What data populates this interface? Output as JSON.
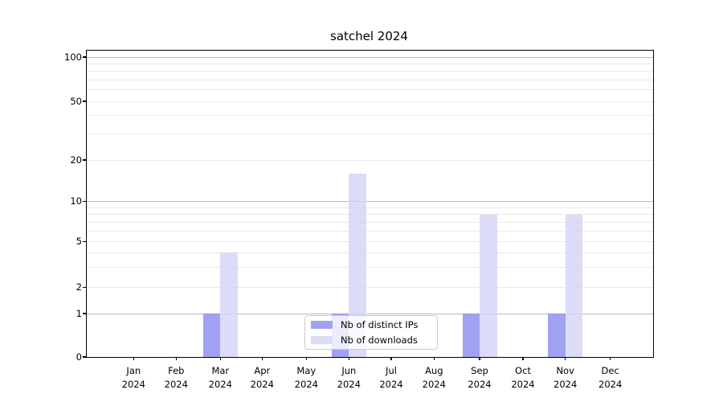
{
  "chart_data": {
    "type": "bar",
    "title": "satchel 2024",
    "categories": [
      "Jan 2024",
      "Feb 2024",
      "Mar 2024",
      "Apr 2024",
      "May 2024",
      "Jun 2024",
      "Jul 2024",
      "Aug 2024",
      "Sep 2024",
      "Oct 2024",
      "Nov 2024",
      "Dec 2024"
    ],
    "series": [
      {
        "name": "Nb of distinct IPs",
        "color": "#8c8cee",
        "values": [
          0,
          0,
          1,
          0,
          0,
          1,
          0,
          0,
          1,
          0,
          1,
          0
        ]
      },
      {
        "name": "Nb of downloads",
        "color": "#d4d4f7",
        "values": [
          0,
          0,
          4,
          0,
          0,
          16,
          0,
          0,
          8,
          0,
          8,
          0
        ]
      }
    ],
    "xlabel": "",
    "ylabel": "",
    "yscale": "symlog",
    "yticks": [
      0,
      1,
      2,
      5,
      10,
      20,
      50,
      100
    ],
    "ylim": [
      0,
      110
    ],
    "minor_ticks": [
      2,
      3,
      4,
      5,
      6,
      7,
      8,
      9,
      20,
      30,
      40,
      50,
      60,
      70,
      80,
      90
    ],
    "major_gridlines": [
      1,
      10,
      100
    ],
    "grid": "on",
    "legend_position": "lower center",
    "colors": {
      "grid_major": "#b9b9b9",
      "grid_minor": "#e9e9e9",
      "axis": "#000000",
      "background": "#ffffff"
    }
  }
}
